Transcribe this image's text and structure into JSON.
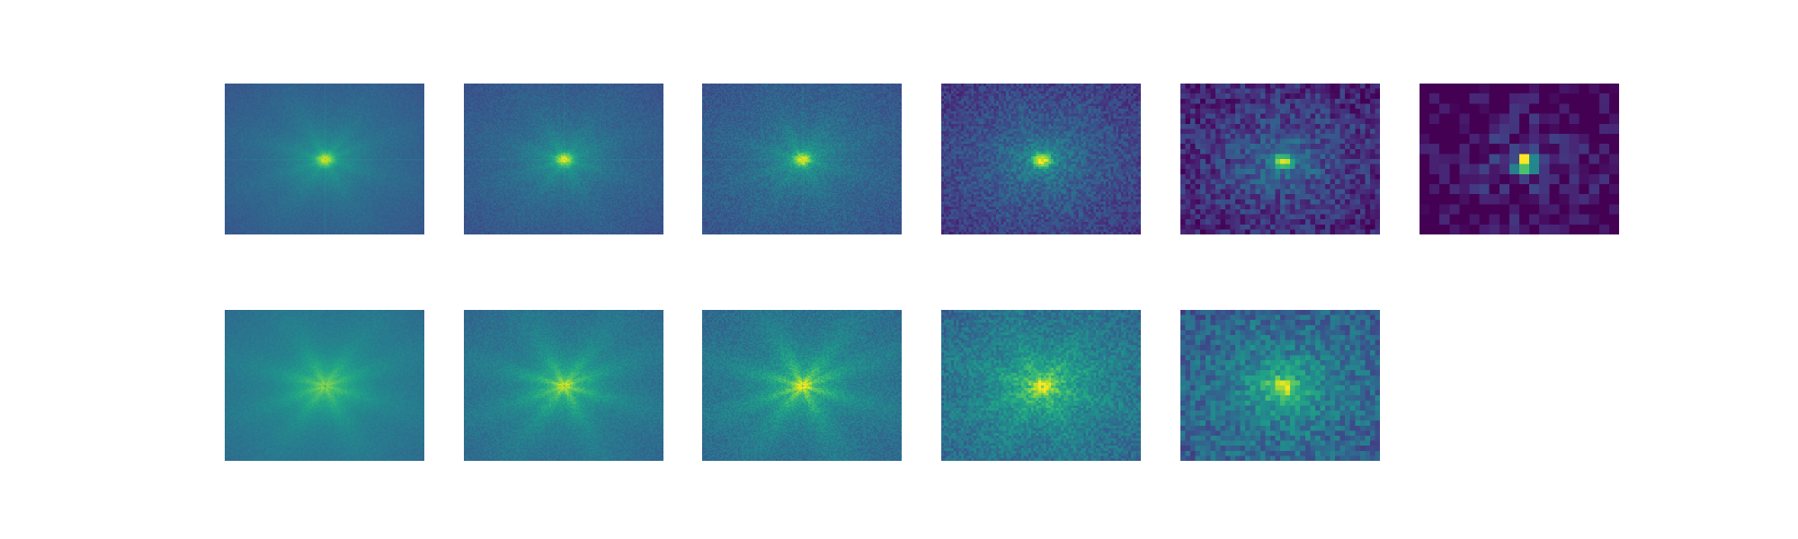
{
  "figure": {
    "background": "#ffffff",
    "colormap": "viridis"
  },
  "chart_data": [
    {
      "type": "heatmap",
      "row": 1,
      "col": 1,
      "grid": [
        160,
        120
      ],
      "center_peak": 0.78,
      "background_level": 0.4,
      "streak_strength": 0.05,
      "noise": 0.03,
      "axes_visible": false
    },
    {
      "type": "heatmap",
      "row": 1,
      "col": 2,
      "grid": [
        160,
        120
      ],
      "center_peak": 0.8,
      "background_level": 0.38,
      "streak_strength": 0.05,
      "noise": 0.05,
      "axes_visible": false
    },
    {
      "type": "heatmap",
      "row": 1,
      "col": 3,
      "grid": [
        160,
        120
      ],
      "center_peak": 0.82,
      "background_level": 0.38,
      "streak_strength": 0.06,
      "noise": 0.07,
      "axes_visible": false
    },
    {
      "type": "heatmap",
      "row": 1,
      "col": 4,
      "grid": [
        80,
        60
      ],
      "center_peak": 0.9,
      "background_level": 0.33,
      "streak_strength": 0.04,
      "noise": 0.09,
      "axes_visible": false
    },
    {
      "type": "heatmap",
      "row": 1,
      "col": 5,
      "grid": [
        40,
        30
      ],
      "center_peak": 0.96,
      "background_level": 0.25,
      "streak_strength": 0.03,
      "noise": 0.12,
      "axes_visible": false
    },
    {
      "type": "heatmap",
      "row": 1,
      "col": 6,
      "grid": [
        20,
        15
      ],
      "center_peak": 1.0,
      "background_level": 0.12,
      "streak_strength": 0.0,
      "noise": 0.14,
      "axes_visible": false
    },
    {
      "type": "heatmap",
      "row": 2,
      "col": 1,
      "grid": [
        160,
        120
      ],
      "center_peak": 0.58,
      "background_level": 0.48,
      "streak_strength": 0.08,
      "noise": 0.03,
      "axes_visible": false
    },
    {
      "type": "heatmap",
      "row": 2,
      "col": 2,
      "grid": [
        160,
        120
      ],
      "center_peak": 0.68,
      "background_level": 0.46,
      "streak_strength": 0.12,
      "noise": 0.05,
      "axes_visible": false
    },
    {
      "type": "heatmap",
      "row": 2,
      "col": 3,
      "grid": [
        160,
        120
      ],
      "center_peak": 0.74,
      "background_level": 0.46,
      "streak_strength": 0.15,
      "noise": 0.07,
      "axes_visible": false
    },
    {
      "type": "heatmap",
      "row": 2,
      "col": 4,
      "grid": [
        80,
        60
      ],
      "center_peak": 0.8,
      "background_level": 0.5,
      "streak_strength": 0.12,
      "noise": 0.09,
      "axes_visible": false
    },
    {
      "type": "heatmap",
      "row": 2,
      "col": 5,
      "grid": [
        40,
        30
      ],
      "center_peak": 0.86,
      "background_level": 0.45,
      "streak_strength": 0.06,
      "noise": 0.12,
      "axes_visible": false
    }
  ]
}
